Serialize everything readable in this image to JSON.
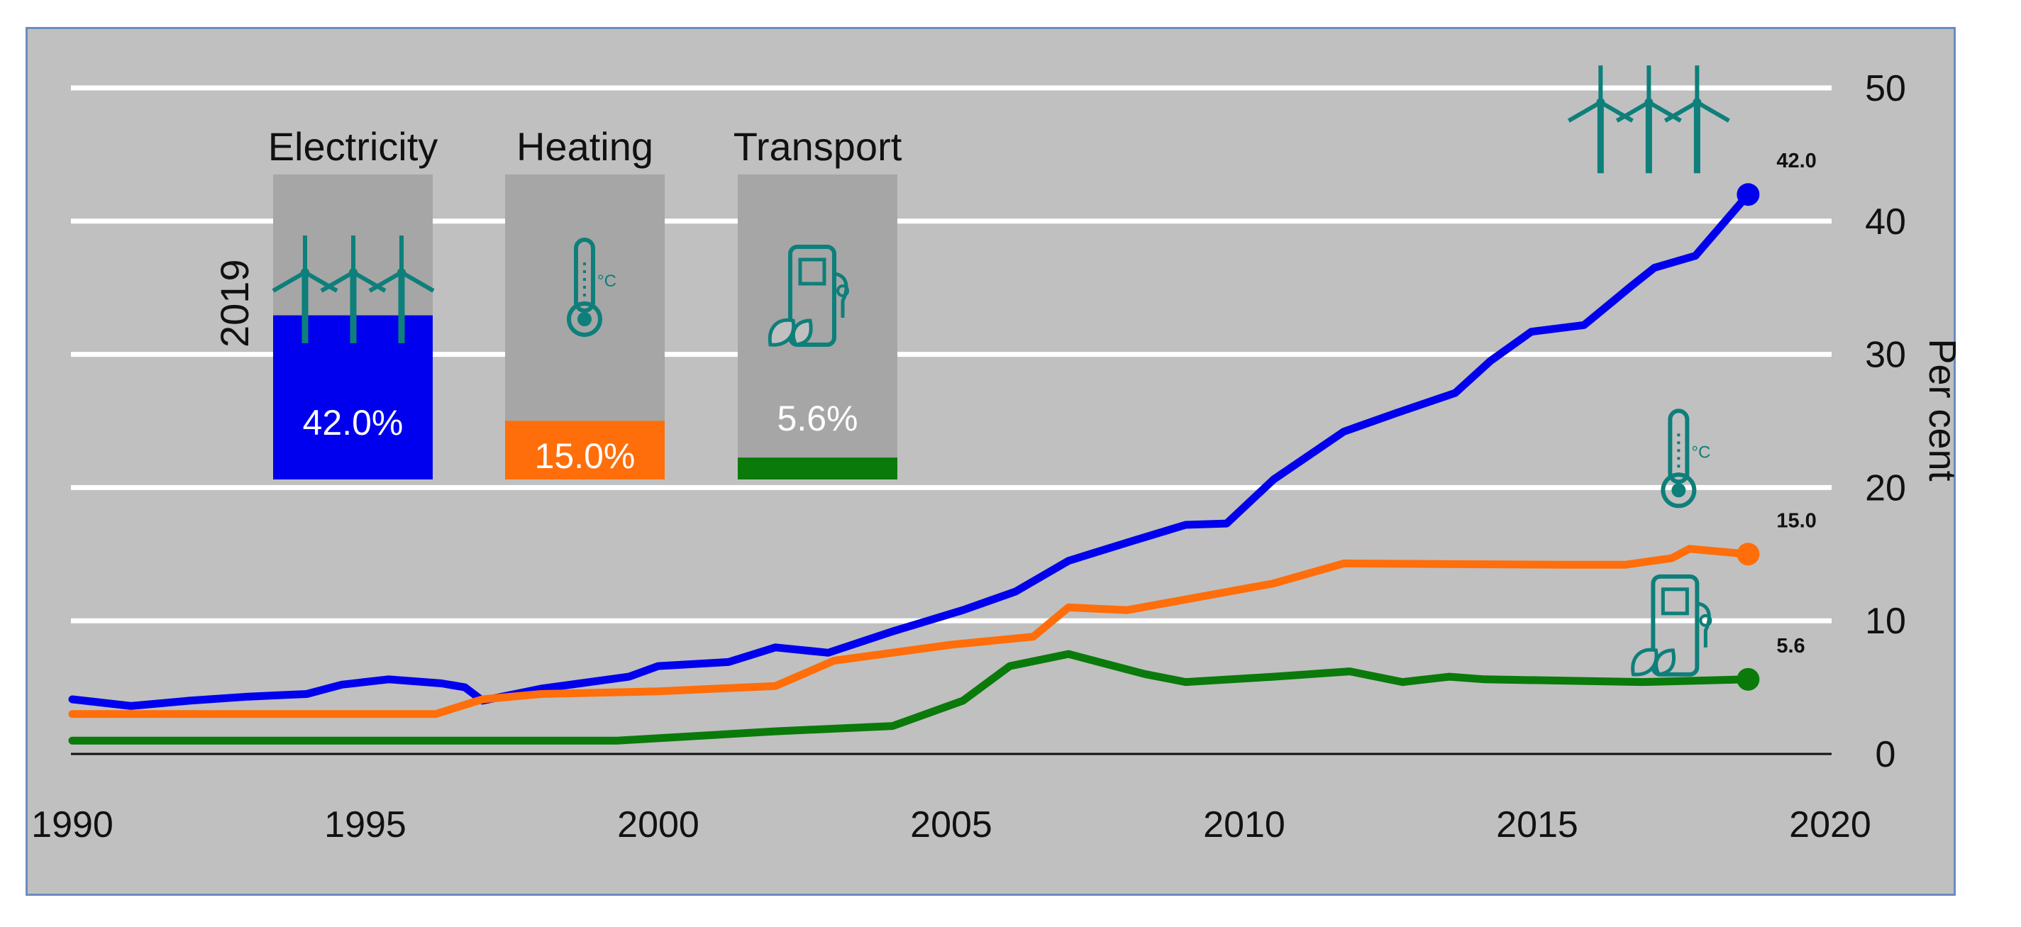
{
  "chart_data": {
    "type": "line",
    "ylabel": "Per cent",
    "xlim": [
      1990,
      2020
    ],
    "ylim": [
      0,
      50
    ],
    "x_ticks": [
      "1990",
      "1995",
      "2000",
      "2005",
      "2010",
      "2015",
      "2020"
    ],
    "y_ticks": [
      "0",
      "10",
      "20",
      "30",
      "40",
      "50"
    ],
    "series": [
      {
        "name": "Electricity",
        "color": "#0000ee",
        "end_label": "42.0",
        "icon": "wind-turbines-icon",
        "points": [
          [
            1990,
            4.1
          ],
          [
            1991,
            3.6
          ],
          [
            1992,
            4.0
          ],
          [
            1993,
            4.3
          ],
          [
            1994,
            4.5
          ],
          [
            1994.6,
            5.2
          ],
          [
            1995.4,
            5.6
          ],
          [
            1996.3,
            5.3
          ],
          [
            1996.7,
            5.0
          ],
          [
            1997,
            4.0
          ],
          [
            1998,
            4.9
          ],
          [
            1999.5,
            5.8
          ],
          [
            2000,
            6.6
          ],
          [
            2001.2,
            6.9
          ],
          [
            2002,
            8.0
          ],
          [
            2002.9,
            7.6
          ],
          [
            2004,
            9.2
          ],
          [
            2005.2,
            10.8
          ],
          [
            2006.1,
            12.2
          ],
          [
            2007,
            14.5
          ],
          [
            2008.1,
            16.0
          ],
          [
            2009,
            17.2
          ],
          [
            2009.7,
            17.3
          ],
          [
            2010.5,
            20.6
          ],
          [
            2011.7,
            24.2
          ],
          [
            2012.6,
            25.6
          ],
          [
            2013.6,
            27.1
          ],
          [
            2014.2,
            29.5
          ],
          [
            2014.9,
            31.7
          ],
          [
            2015.8,
            32.2
          ],
          [
            2016.6,
            35.1
          ],
          [
            2017,
            36.5
          ],
          [
            2017.7,
            37.4
          ],
          [
            2018.6,
            42.0
          ]
        ]
      },
      {
        "name": "Heating",
        "color": "#ff6e0a",
        "end_label": "15.0",
        "icon": "thermometer-icon",
        "points": [
          [
            1990,
            3.0
          ],
          [
            1996.2,
            3.0
          ],
          [
            1997,
            4.1
          ],
          [
            1998,
            4.5
          ],
          [
            2000,
            4.7
          ],
          [
            2002,
            5.1
          ],
          [
            2003,
            7.0
          ],
          [
            2005,
            8.2
          ],
          [
            2006.4,
            8.8
          ],
          [
            2007,
            11.0
          ],
          [
            2008,
            10.8
          ],
          [
            2009,
            11.6
          ],
          [
            2010.5,
            12.8
          ],
          [
            2011.7,
            14.3
          ],
          [
            2015.5,
            14.2
          ],
          [
            2016.5,
            14.2
          ],
          [
            2017.3,
            14.7
          ],
          [
            2017.6,
            15.4
          ],
          [
            2018.6,
            15.0
          ]
        ]
      },
      {
        "name": "Transport",
        "color": "#0a7a0a",
        "end_label": "5.6",
        "icon": "fuel-pump-icon",
        "points": [
          [
            1990,
            1.0
          ],
          [
            1999.3,
            1.0
          ],
          [
            2002,
            1.7
          ],
          [
            2004,
            2.1
          ],
          [
            2005.2,
            4.0
          ],
          [
            2006,
            6.6
          ],
          [
            2007,
            7.5
          ],
          [
            2008.3,
            6.0
          ],
          [
            2009,
            5.4
          ],
          [
            2010.5,
            5.8
          ],
          [
            2011.8,
            6.2
          ],
          [
            2012.7,
            5.4
          ],
          [
            2013.5,
            5.8
          ],
          [
            2014.1,
            5.6
          ],
          [
            2016.8,
            5.4
          ],
          [
            2018.6,
            5.6
          ]
        ]
      }
    ],
    "inset": {
      "year_label": "2019",
      "bars": [
        {
          "name": "Electricity",
          "label": "Electricity",
          "value": 42.0,
          "value_label": "42.0%",
          "color": "#0000ee",
          "icon": "wind-turbines-icon"
        },
        {
          "name": "Heating",
          "label": "Heating",
          "value": 15.0,
          "value_label": "15.0%",
          "color": "#ff6e0a",
          "icon": "thermometer-icon"
        },
        {
          "name": "Transport",
          "label": "Transport",
          "value": 5.6,
          "value_label": "5.6%",
          "color": "#0a7a0a",
          "icon": "fuel-pump-icon"
        }
      ]
    }
  },
  "colors": {
    "background": "#c0c0c0",
    "frame_border": "#6a8cbf",
    "gridline": "#ffffff",
    "inset_bar_background": "#a6a6a6",
    "icon": "#0e7f7a"
  }
}
